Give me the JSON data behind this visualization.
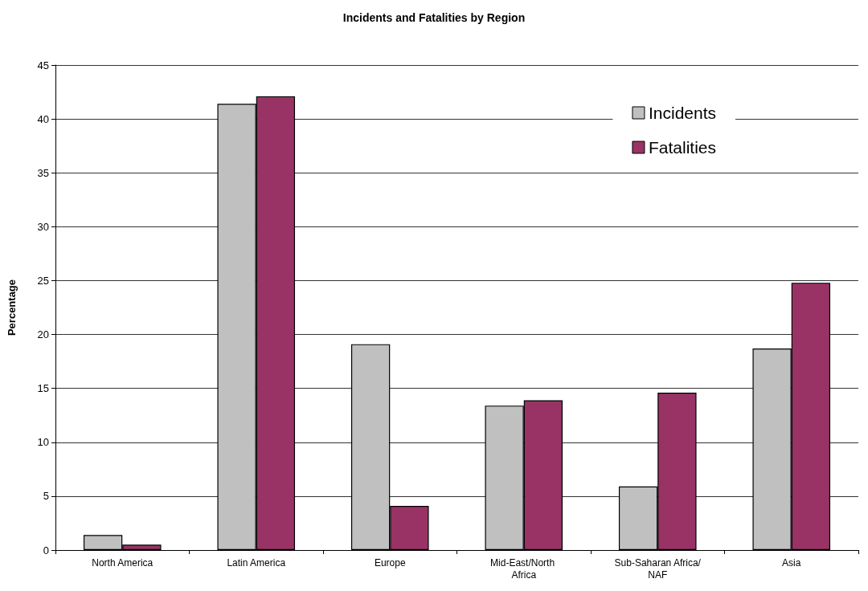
{
  "chart_data": {
    "type": "bar",
    "title": "Incidents and Fatalities by Region",
    "ylabel": "Percentage",
    "categories": [
      "North America",
      "Latin America",
      "Europe",
      "Mid-East/North Africa",
      "Sub-Saharan Africa/NAF",
      "Asia"
    ],
    "series": [
      {
        "name": "Incidents",
        "color": "#c0c0c0",
        "values": [
          1.4,
          41.4,
          19.1,
          13.4,
          5.9,
          18.7
        ]
      },
      {
        "name": "Fatalities",
        "color": "#993366",
        "values": [
          0.5,
          42.1,
          4.1,
          13.9,
          14.6,
          24.8
        ]
      }
    ],
    "ylim": [
      0,
      45
    ],
    "yticks": [
      0,
      5,
      10,
      15,
      20,
      25,
      30,
      35,
      40,
      45
    ],
    "grid": "y",
    "legend": "top right"
  }
}
